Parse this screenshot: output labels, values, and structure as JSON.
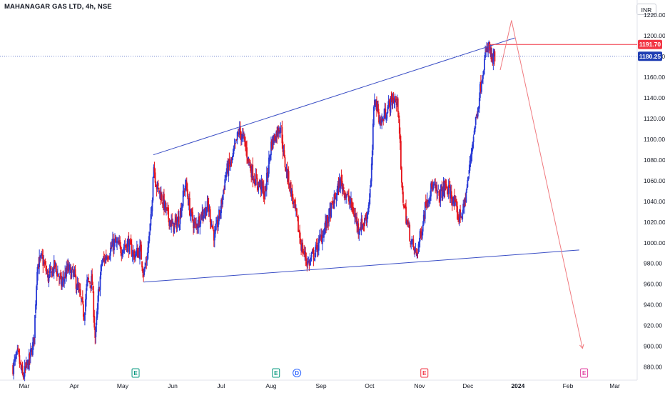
{
  "header": {
    "title": "MAHANAGAR GAS LTD, 4h, NSE",
    "currency": "INR"
  },
  "colors": {
    "up": "#2a3bd6",
    "down": "#e5151c",
    "trendline": "#3a4ec5",
    "projection": "#f07a7f",
    "axis_text": "#131722"
  },
  "price_tags": [
    {
      "value": 1191.7,
      "label": "1191.70",
      "color": "#f23645"
    },
    {
      "value": 1180.25,
      "label": "1180.25",
      "color": "#1f3eb3"
    }
  ],
  "chart_data": {
    "type": "candlestick",
    "title": "MAHANAGAR GAS LTD, 4h, NSE",
    "xlabel": "",
    "ylabel": "",
    "ylim": [
      870,
      1230
    ],
    "y_ticks": [
      880,
      900,
      920,
      940,
      960,
      980,
      1000,
      1020,
      1040,
      1060,
      1080,
      1100,
      1120,
      1140,
      1160,
      1180,
      1200,
      1220
    ],
    "y_tick_labels": [
      "880.00",
      "900.00",
      "920.00",
      "940.00",
      "960.00",
      "980.00",
      "1000.00",
      "1020.00",
      "1040.00",
      "1060.00",
      "1080.00",
      "1100.00",
      "1120.00",
      "1140.00",
      "1160.00",
      "1180.00",
      "1200.00",
      "1220.00"
    ],
    "x_ticks": [
      {
        "label": "Mar",
        "date": "2023-03-01"
      },
      {
        "label": "Apr",
        "date": "2023-04-01"
      },
      {
        "label": "May",
        "date": "2023-05-01"
      },
      {
        "label": "Jun",
        "date": "2023-06-01"
      },
      {
        "label": "Jul",
        "date": "2023-07-01"
      },
      {
        "label": "Aug",
        "date": "2023-08-01"
      },
      {
        "label": "Sep",
        "date": "2023-09-01"
      },
      {
        "label": "Oct",
        "date": "2023-10-01"
      },
      {
        "label": "Nov",
        "date": "2023-11-01"
      },
      {
        "label": "Dec",
        "date": "2023-12-01"
      },
      {
        "label": "2024",
        "date": "2024-01-01",
        "bold": true
      },
      {
        "label": "Feb",
        "date": "2024-02-01"
      },
      {
        "label": "Mar",
        "date": "2024-03-01"
      }
    ],
    "price_path": [
      [
        "2023-02-22",
        880
      ],
      [
        "2023-02-25",
        892
      ],
      [
        "2023-02-28",
        870
      ],
      [
        "2023-03-04",
        886
      ],
      [
        "2023-03-07",
        905
      ],
      [
        "2023-03-09",
        978
      ],
      [
        "2023-03-12",
        985
      ],
      [
        "2023-03-16",
        966
      ],
      [
        "2023-03-20",
        978
      ],
      [
        "2023-03-24",
        960
      ],
      [
        "2023-03-28",
        975
      ],
      [
        "2023-04-01",
        968
      ],
      [
        "2023-04-05",
        945
      ],
      [
        "2023-04-07",
        930
      ],
      [
        "2023-04-09",
        962
      ],
      [
        "2023-04-12",
        963
      ],
      [
        "2023-04-14",
        906
      ],
      [
        "2023-04-16",
        950
      ],
      [
        "2023-04-18",
        980
      ],
      [
        "2023-04-22",
        990
      ],
      [
        "2023-04-26",
        1000
      ],
      [
        "2023-04-30",
        994
      ],
      [
        "2023-05-04",
        1000
      ],
      [
        "2023-05-08",
        988
      ],
      [
        "2023-05-12",
        993
      ],
      [
        "2023-05-14",
        970
      ],
      [
        "2023-05-16",
        985
      ],
      [
        "2023-05-19",
        1030
      ],
      [
        "2023-05-20",
        1078
      ],
      [
        "2023-05-22",
        1055
      ],
      [
        "2023-05-25",
        1045
      ],
      [
        "2023-05-28",
        1030
      ],
      [
        "2023-06-01",
        1015
      ],
      [
        "2023-06-05",
        1023
      ],
      [
        "2023-06-09",
        1058
      ],
      [
        "2023-06-12",
        1028
      ],
      [
        "2023-06-15",
        1015
      ],
      [
        "2023-06-19",
        1028
      ],
      [
        "2023-06-23",
        1035
      ],
      [
        "2023-06-27",
        1005
      ],
      [
        "2023-07-01",
        1035
      ],
      [
        "2023-07-04",
        1068
      ],
      [
        "2023-07-08",
        1080
      ],
      [
        "2023-07-12",
        1108
      ],
      [
        "2023-07-15",
        1100
      ],
      [
        "2023-07-19",
        1073
      ],
      [
        "2023-07-23",
        1058
      ],
      [
        "2023-07-26",
        1055
      ],
      [
        "2023-07-28",
        1045
      ],
      [
        "2023-08-01",
        1095
      ],
      [
        "2023-08-04",
        1105
      ],
      [
        "2023-08-07",
        1115
      ],
      [
        "2023-08-09",
        1080
      ],
      [
        "2023-08-12",
        1060
      ],
      [
        "2023-08-16",
        1030
      ],
      [
        "2023-08-20",
        995
      ],
      [
        "2023-08-24",
        980
      ],
      [
        "2023-08-28",
        990
      ],
      [
        "2023-09-01",
        1005
      ],
      [
        "2023-09-05",
        1022
      ],
      [
        "2023-09-09",
        1040
      ],
      [
        "2023-09-13",
        1060
      ],
      [
        "2023-09-16",
        1048
      ],
      [
        "2023-09-20",
        1035
      ],
      [
        "2023-09-24",
        1015
      ],
      [
        "2023-09-28",
        1020
      ],
      [
        "2023-09-30",
        1032
      ],
      [
        "2023-10-02",
        1060
      ],
      [
        "2023-10-04",
        1142
      ],
      [
        "2023-10-08",
        1115
      ],
      [
        "2023-10-12",
        1130
      ],
      [
        "2023-10-16",
        1140
      ],
      [
        "2023-10-19",
        1130
      ],
      [
        "2023-10-21",
        1050
      ],
      [
        "2023-10-24",
        1022
      ],
      [
        "2023-10-27",
        1000
      ],
      [
        "2023-10-30",
        988
      ],
      [
        "2023-11-02",
        1010
      ],
      [
        "2023-11-05",
        1040
      ],
      [
        "2023-11-09",
        1055
      ],
      [
        "2023-11-13",
        1045
      ],
      [
        "2023-11-17",
        1055
      ],
      [
        "2023-11-21",
        1045
      ],
      [
        "2023-11-25",
        1025
      ],
      [
        "2023-11-28",
        1030
      ],
      [
        "2023-12-01",
        1060
      ],
      [
        "2023-12-04",
        1100
      ],
      [
        "2023-12-07",
        1130
      ],
      [
        "2023-12-10",
        1165
      ],
      [
        "2023-12-12",
        1182
      ],
      [
        "2023-12-14",
        1190
      ],
      [
        "2023-12-16",
        1175
      ],
      [
        "2023-12-18",
        1180
      ]
    ],
    "trendlines": [
      {
        "name": "upper",
        "points": [
          [
            "2023-05-20",
            1085
          ],
          [
            "2023-12-30",
            1198
          ]
        ]
      },
      {
        "name": "lower",
        "points": [
          [
            "2023-05-14",
            962
          ],
          [
            "2024-02-08",
            993
          ]
        ]
      }
    ],
    "projection": {
      "path": [
        [
          "2023-12-21",
          1167
        ],
        [
          "2023-12-28",
          1215
        ],
        [
          "2024-02-10",
          898
        ]
      ],
      "level": {
        "value": 1191.7,
        "from": "2023-12-14",
        "to": "2024-03-15"
      }
    },
    "current_price": 1180.25,
    "event_markers": [
      {
        "label": "E",
        "date": "2023-05-09",
        "color": "#089981"
      },
      {
        "label": "E",
        "date": "2023-08-04",
        "color": "#089981"
      },
      {
        "label": "D",
        "date": "2023-08-17",
        "color": "#2962ff"
      },
      {
        "label": "E",
        "date": "2023-11-04",
        "color": "#f23645"
      },
      {
        "label": "E",
        "date": "2024-02-11",
        "color": "#e040a0"
      }
    ]
  }
}
